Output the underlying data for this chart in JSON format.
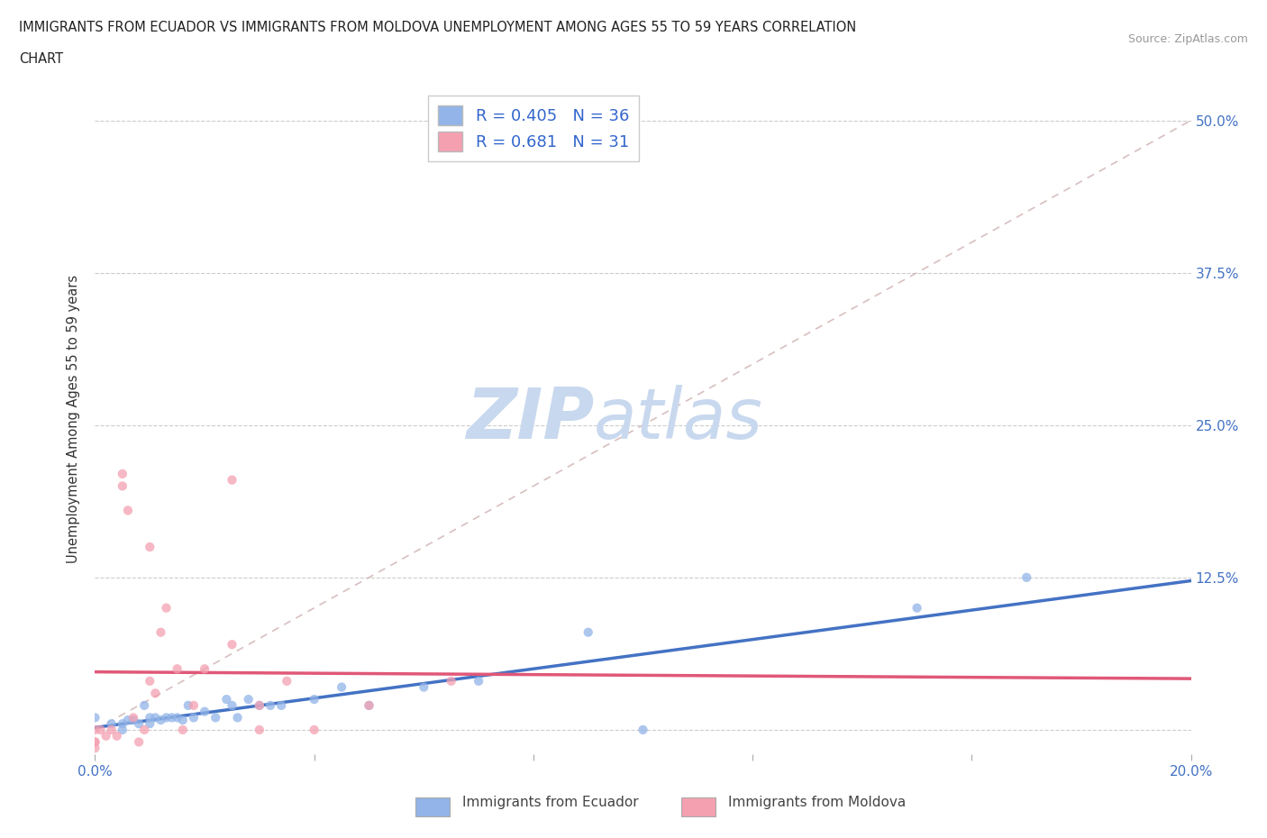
{
  "title_line1": "IMMIGRANTS FROM ECUADOR VS IMMIGRANTS FROM MOLDOVA UNEMPLOYMENT AMONG AGES 55 TO 59 YEARS CORRELATION",
  "title_line2": "CHART",
  "source": "Source: ZipAtlas.com",
  "ylabel": "Unemployment Among Ages 55 to 59 years",
  "xlim": [
    0.0,
    0.2
  ],
  "ylim": [
    -0.02,
    0.53
  ],
  "xticks": [
    0.0,
    0.04,
    0.08,
    0.12,
    0.16,
    0.2
  ],
  "xticklabels": [
    "0.0%",
    "",
    "",
    "",
    "",
    "20.0%"
  ],
  "yticks": [
    0.0,
    0.125,
    0.25,
    0.375,
    0.5
  ],
  "yticklabels": [
    "",
    "12.5%",
    "25.0%",
    "37.5%",
    "50.0%"
  ],
  "ecuador_R": 0.405,
  "ecuador_N": 36,
  "moldova_R": 0.681,
  "moldova_N": 31,
  "ecuador_color": "#92b4e8",
  "moldova_color": "#f4a0b0",
  "ecuador_line_color": "#4472c4",
  "moldova_line_color": "#e05878",
  "ref_line_color": "#d4b8b8",
  "watermark_main": "ZIP",
  "watermark_sub": "atlas",
  "watermark_color": "#c8d8ee",
  "ecuador_x": [
    0.0,
    0.003,
    0.005,
    0.005,
    0.006,
    0.007,
    0.008,
    0.009,
    0.01,
    0.01,
    0.011,
    0.012,
    0.013,
    0.014,
    0.015,
    0.016,
    0.017,
    0.018,
    0.02,
    0.022,
    0.024,
    0.025,
    0.026,
    0.028,
    0.03,
    0.032,
    0.034,
    0.04,
    0.045,
    0.05,
    0.06,
    0.07,
    0.09,
    0.1,
    0.15,
    0.17
  ],
  "ecuador_y": [
    0.01,
    0.005,
    0.0,
    0.005,
    0.008,
    0.008,
    0.005,
    0.02,
    0.005,
    0.01,
    0.01,
    0.008,
    0.01,
    0.01,
    0.01,
    0.008,
    0.02,
    0.01,
    0.015,
    0.01,
    0.025,
    0.02,
    0.01,
    0.025,
    0.02,
    0.02,
    0.02,
    0.025,
    0.035,
    0.02,
    0.035,
    0.04,
    0.08,
    0.0,
    0.1,
    0.125
  ],
  "moldova_x": [
    0.0,
    0.0,
    0.0,
    0.0,
    0.001,
    0.002,
    0.003,
    0.004,
    0.005,
    0.005,
    0.006,
    0.007,
    0.008,
    0.009,
    0.01,
    0.01,
    0.011,
    0.012,
    0.013,
    0.015,
    0.016,
    0.018,
    0.02,
    0.025,
    0.025,
    0.03,
    0.03,
    0.035,
    0.04,
    0.05,
    0.065
  ],
  "moldova_y": [
    0.0,
    -0.01,
    -0.01,
    -0.015,
    0.0,
    -0.005,
    0.0,
    -0.005,
    0.21,
    0.2,
    0.18,
    0.01,
    -0.01,
    0.0,
    0.15,
    0.04,
    0.03,
    0.08,
    0.1,
    0.05,
    0.0,
    0.02,
    0.05,
    0.07,
    0.205,
    0.0,
    0.02,
    0.04,
    0.0,
    0.02,
    0.04
  ]
}
